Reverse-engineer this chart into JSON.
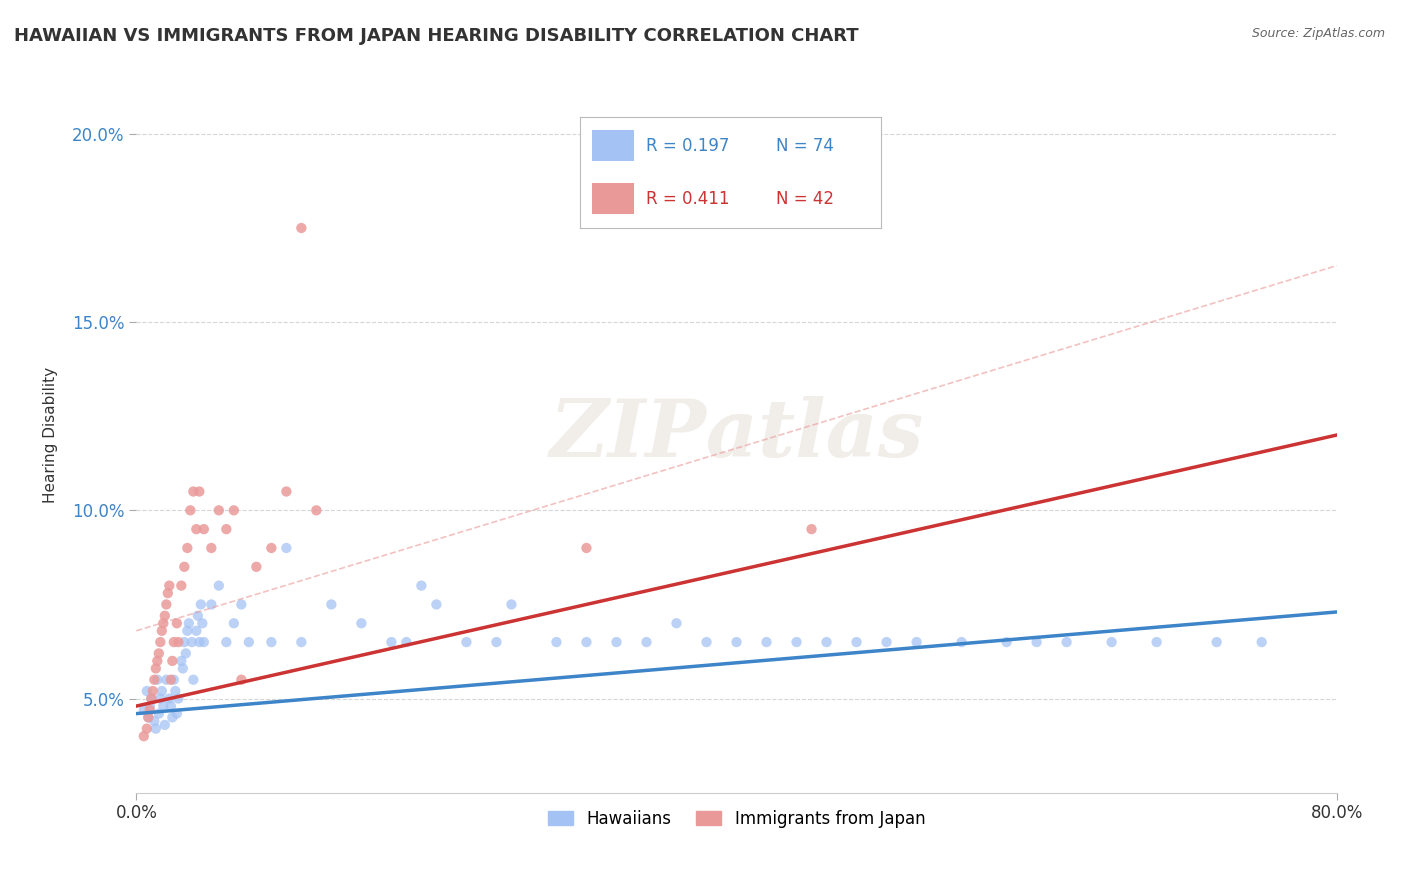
{
  "title": "HAWAIIAN VS IMMIGRANTS FROM JAPAN HEARING DISABILITY CORRELATION CHART",
  "source": "Source: ZipAtlas.com",
  "ylabel": "Hearing Disability",
  "xmin": 0.0,
  "xmax": 0.8,
  "ymin": 0.025,
  "ymax": 0.215,
  "hawaiians_color": "#a4c2f4",
  "japan_color": "#ea9999",
  "trend_hawaiians_color": "#3d85c8",
  "trend_japan_color": "#cc3333",
  "background_color": "#ffffff",
  "grid_color": "#cccccc",
  "title_fontsize": 13,
  "axis_label_fontsize": 11,
  "ytick_color": "#3d85c8",
  "legend_r_hawaii": "R = 0.197",
  "legend_n_hawaii": "N = 74",
  "legend_r_japan": "R = 0.411",
  "legend_n_japan": "N = 42",
  "watermark": "ZIPAtlas",
  "hawaiians_x": [
    0.005,
    0.007,
    0.008,
    0.009,
    0.01,
    0.012,
    0.013,
    0.014,
    0.015,
    0.016,
    0.017,
    0.018,
    0.019,
    0.02,
    0.022,
    0.023,
    0.024,
    0.025,
    0.026,
    0.027,
    0.028,
    0.03,
    0.031,
    0.032,
    0.033,
    0.034,
    0.035,
    0.037,
    0.038,
    0.04,
    0.041,
    0.042,
    0.043,
    0.044,
    0.045,
    0.05,
    0.055,
    0.06,
    0.065,
    0.07,
    0.075,
    0.09,
    0.1,
    0.11,
    0.13,
    0.15,
    0.17,
    0.18,
    0.19,
    0.2,
    0.22,
    0.24,
    0.25,
    0.28,
    0.3,
    0.32,
    0.34,
    0.36,
    0.38,
    0.4,
    0.42,
    0.44,
    0.46,
    0.48,
    0.5,
    0.52,
    0.55,
    0.58,
    0.6,
    0.62,
    0.65,
    0.68,
    0.72,
    0.75
  ],
  "hawaiians_y": [
    0.047,
    0.052,
    0.045,
    0.048,
    0.05,
    0.044,
    0.042,
    0.055,
    0.046,
    0.05,
    0.052,
    0.048,
    0.043,
    0.055,
    0.05,
    0.048,
    0.045,
    0.055,
    0.052,
    0.046,
    0.05,
    0.06,
    0.058,
    0.065,
    0.062,
    0.068,
    0.07,
    0.065,
    0.055,
    0.068,
    0.072,
    0.065,
    0.075,
    0.07,
    0.065,
    0.075,
    0.08,
    0.065,
    0.07,
    0.075,
    0.065,
    0.065,
    0.09,
    0.065,
    0.075,
    0.07,
    0.065,
    0.065,
    0.08,
    0.075,
    0.065,
    0.065,
    0.075,
    0.065,
    0.065,
    0.065,
    0.065,
    0.07,
    0.065,
    0.065,
    0.065,
    0.065,
    0.065,
    0.065,
    0.065,
    0.065,
    0.065,
    0.065,
    0.065,
    0.065,
    0.065,
    0.065,
    0.065,
    0.065
  ],
  "japan_x": [
    0.005,
    0.007,
    0.008,
    0.009,
    0.01,
    0.011,
    0.012,
    0.013,
    0.014,
    0.015,
    0.016,
    0.017,
    0.018,
    0.019,
    0.02,
    0.021,
    0.022,
    0.023,
    0.024,
    0.025,
    0.027,
    0.028,
    0.03,
    0.032,
    0.034,
    0.036,
    0.038,
    0.04,
    0.042,
    0.045,
    0.05,
    0.055,
    0.06,
    0.065,
    0.07,
    0.08,
    0.09,
    0.1,
    0.11,
    0.12,
    0.3,
    0.45
  ],
  "japan_y": [
    0.04,
    0.042,
    0.045,
    0.047,
    0.05,
    0.052,
    0.055,
    0.058,
    0.06,
    0.062,
    0.065,
    0.068,
    0.07,
    0.072,
    0.075,
    0.078,
    0.08,
    0.055,
    0.06,
    0.065,
    0.07,
    0.065,
    0.08,
    0.085,
    0.09,
    0.1,
    0.105,
    0.095,
    0.105,
    0.095,
    0.09,
    0.1,
    0.095,
    0.1,
    0.055,
    0.085,
    0.09,
    0.105,
    0.175,
    0.1,
    0.09,
    0.095
  ],
  "hawaii_trend_start": 0.046,
  "hawaii_trend_end": 0.073,
  "japan_trend_start": 0.048,
  "japan_trend_end": 0.12,
  "dash_line_start_x": 0.0,
  "dash_line_start_y": 0.068,
  "dash_line_end_x": 0.8,
  "dash_line_end_y": 0.165
}
